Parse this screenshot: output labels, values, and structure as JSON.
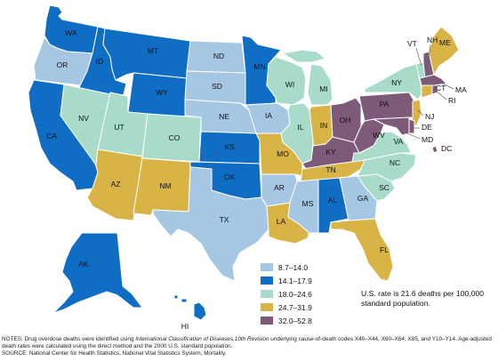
{
  "legend": [
    {
      "label": "8.7–14.0",
      "color": "#a5c7e4"
    },
    {
      "label": "14.1–17.9",
      "color": "#0f6ec4"
    },
    {
      "label": "18.0–24.6",
      "color": "#a8dcc8"
    },
    {
      "label": "24.7–31.9",
      "color": "#d8b446"
    },
    {
      "label": "32.0–52.8",
      "color": "#7c5a78"
    }
  ],
  "rate_note": "U.S. rate is 21.6 deaths per 100,000 standard population.",
  "notes": {
    "prefix": "NOTES: Drug overdose deaths were identified using ",
    "italic": "International Classification of Diseases,10th Revision",
    "suffix": " underlying cause-of-death codes X40–X44, X60–X64, X85, and Y10–Y14. Age-adjusted death rates were calculated using the direct method and the 2000 U.S. standard population.",
    "source": "SOURCE: National Center for Health Statistics, National Vital Statistics System, Mortality."
  },
  "states": {
    "WA": {
      "label": "WA",
      "class": 1
    },
    "OR": {
      "label": "OR",
      "class": 0
    },
    "CA": {
      "label": "CA",
      "class": 1
    },
    "ID": {
      "label": "ID",
      "class": 1
    },
    "NV": {
      "label": "NV",
      "class": 2
    },
    "MT": {
      "label": "MT",
      "class": 1
    },
    "WY": {
      "label": "WY",
      "class": 1
    },
    "UT": {
      "label": "UT",
      "class": 2
    },
    "CO": {
      "label": "CO",
      "class": 2
    },
    "AZ": {
      "label": "AZ",
      "class": 3
    },
    "NM": {
      "label": "NM",
      "class": 3
    },
    "ND": {
      "label": "ND",
      "class": 0
    },
    "SD": {
      "label": "SD",
      "class": 0
    },
    "NE": {
      "label": "NE",
      "class": 0
    },
    "KS": {
      "label": "KS",
      "class": 1
    },
    "OK": {
      "label": "OK",
      "class": 1
    },
    "TX": {
      "label": "TX",
      "class": 0
    },
    "MN": {
      "label": "MN",
      "class": 1
    },
    "IA": {
      "label": "IA",
      "class": 0
    },
    "MO": {
      "label": "MO",
      "class": 3
    },
    "AR": {
      "label": "AR",
      "class": 0
    },
    "LA": {
      "label": "LA",
      "class": 3
    },
    "WI": {
      "label": "WI",
      "class": 2
    },
    "IL": {
      "label": "IL",
      "class": 2
    },
    "MI": {
      "label": "MI",
      "class": 2
    },
    "IN": {
      "label": "IN",
      "class": 3
    },
    "OH": {
      "label": "OH",
      "class": 4
    },
    "KY": {
      "label": "KY",
      "class": 4
    },
    "TN": {
      "label": "TN",
      "class": 3
    },
    "MS": {
      "label": "MS",
      "class": 0
    },
    "AL": {
      "label": "AL",
      "class": 1
    },
    "GA": {
      "label": "GA",
      "class": 0
    },
    "FL": {
      "label": "FL",
      "class": 3
    },
    "SC": {
      "label": "SC",
      "class": 2
    },
    "NC": {
      "label": "NC",
      "class": 2
    },
    "VA": {
      "label": "VA",
      "class": 2
    },
    "WV": {
      "label": "WV",
      "class": 4
    },
    "PA": {
      "label": "PA",
      "class": 4
    },
    "NY": {
      "label": "NY",
      "class": 2
    },
    "NJ": {
      "label": "NJ",
      "class": 3
    },
    "DE": {
      "label": "DE",
      "class": 4
    },
    "MD": {
      "label": "MD",
      "class": 4
    },
    "DC": {
      "label": "DC",
      "class": 4
    },
    "CT": {
      "label": "CT",
      "class": 3
    },
    "RI": {
      "label": "RI",
      "class": 4
    },
    "MA": {
      "label": "MA",
      "class": 4
    },
    "VT": {
      "label": "VT",
      "class": 2
    },
    "NH": {
      "label": "NH",
      "class": 4
    },
    "ME": {
      "label": "ME",
      "class": 3
    },
    "AK": {
      "label": "AK",
      "class": 1
    },
    "HI": {
      "label": "HI",
      "class": 1
    }
  }
}
